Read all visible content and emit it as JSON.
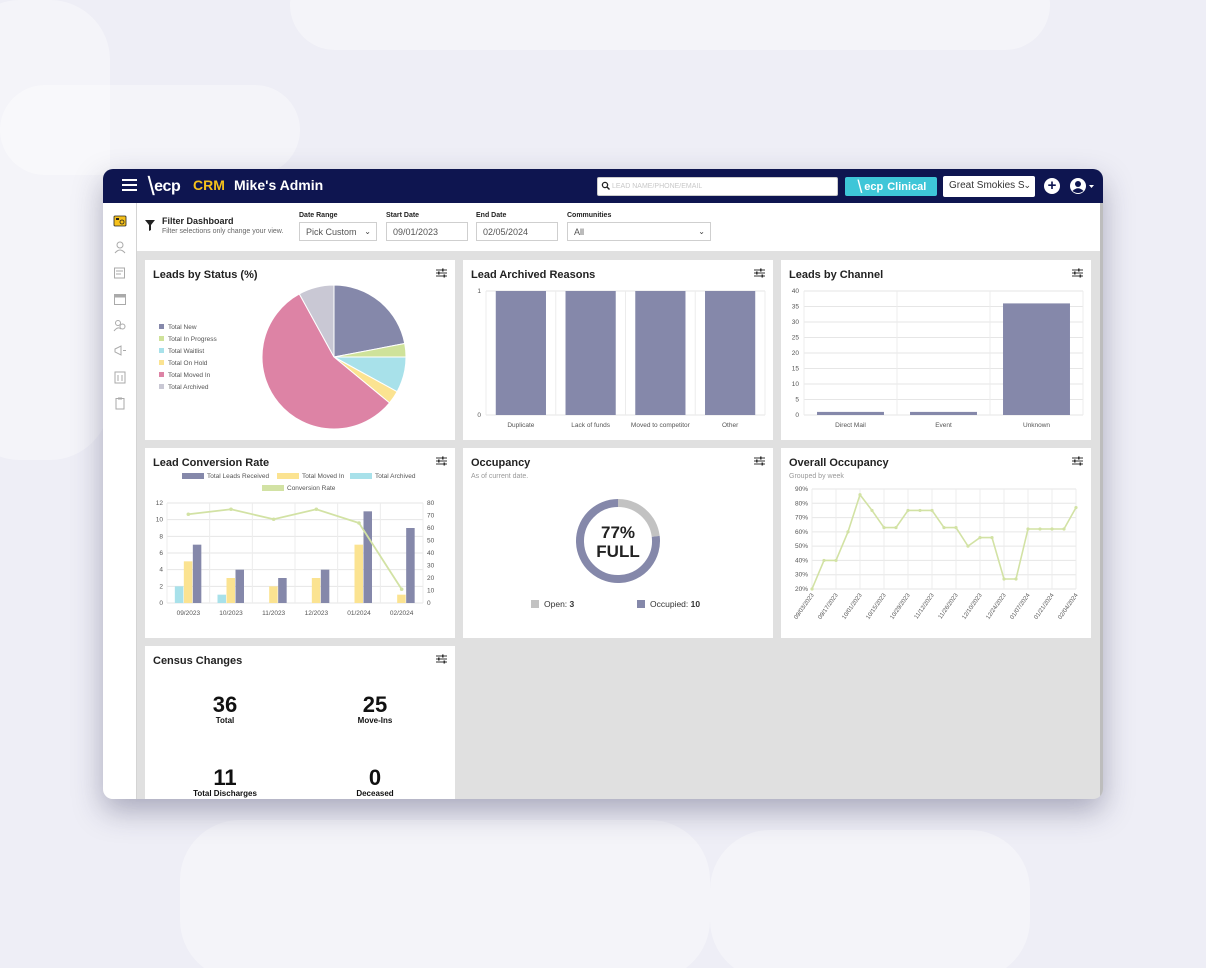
{
  "header": {
    "logo_text": "ecp",
    "product": "CRM",
    "title": "Mike's Admin",
    "search_placeholder": "LEAD NAME/PHONE/EMAIL",
    "clinical_label": "Clinical",
    "clinical_logo": "ecp",
    "community_selected": "Great Smokies S",
    "plus_label": "+"
  },
  "filter": {
    "title": "Filter Dashboard",
    "subtitle": "Filter selections only change your view.",
    "date_range_label": "Date Range",
    "date_range_value": "Pick Custom",
    "start_date_label": "Start Date",
    "start_date_value": "09/01/2023",
    "end_date_label": "End Date",
    "end_date_value": "02/05/2024",
    "communities_label": "Communities",
    "communities_value": "All"
  },
  "sidebar": {
    "icons": [
      "dashboard-icon",
      "person-icon",
      "notes-icon",
      "calendar-icon",
      "people-search-icon",
      "megaphone-icon",
      "building-icon",
      "clipboard-icon"
    ],
    "active_color": "#f6c11b"
  },
  "colors": {
    "navy": "#0e1550",
    "series_purple": "#8588aa",
    "green_line": "#d2e2a4",
    "yellow": "#fbe391",
    "cyan": "#a8e1ea",
    "pink": "#dd83a5",
    "lightgreen": "#c7dfa0",
    "gray": "#c9c8d4"
  },
  "cards": {
    "leads_status": {
      "title": "Leads by Status (%)"
    },
    "archived": {
      "title": "Lead Archived Reasons"
    },
    "channel": {
      "title": "Leads by Channel"
    },
    "conversion": {
      "title": "Lead Conversion Rate"
    },
    "occupancy": {
      "title": "Occupancy",
      "subtitle": "As of current date.",
      "percent_text": "77%",
      "full_text": "FULL",
      "open_label": "Open:",
      "open_value": "3",
      "occupied_label": "Occupied:",
      "occupied_value": "10"
    },
    "overall": {
      "title": "Overall Occupancy",
      "subtitle": "Grouped by week"
    },
    "census": {
      "title": "Census Changes",
      "total": "36",
      "total_label": "Total",
      "moveins": "25",
      "moveins_label": "Move-Ins",
      "discharges": "11",
      "discharges_label": "Total Discharges",
      "deceased": "0",
      "deceased_label": "Deceased"
    }
  },
  "chart_data": [
    {
      "id": "leads_status",
      "type": "pie",
      "title": "Leads by Status (%)",
      "legend_position": "left",
      "labels": [
        "Total New",
        "Total In Progress",
        "Total Waitlist",
        "Total On Hold",
        "Total Moved In",
        "Total Archived"
      ],
      "values": [
        22,
        3,
        8,
        3,
        56,
        8
      ],
      "colors": [
        "#8588aa",
        "#cfe29a",
        "#a8e1ea",
        "#fbe391",
        "#dd83a5",
        "#c9c8d4"
      ]
    },
    {
      "id": "archived",
      "type": "bar",
      "title": "Lead Archived Reasons",
      "categories": [
        "Duplicate",
        "Lack of funds",
        "Moved to competitor",
        "Other"
      ],
      "values": [
        1,
        1,
        1,
        1
      ],
      "ylim": [
        0,
        1
      ],
      "yticks": [
        0,
        1
      ],
      "grid": true
    },
    {
      "id": "channel",
      "type": "bar",
      "title": "Leads by Channel",
      "categories": [
        "Direct Mail",
        "Event",
        "Unknown"
      ],
      "values": [
        1,
        1,
        36
      ],
      "ylim": [
        0,
        40
      ],
      "yticks": [
        0,
        5,
        10,
        15,
        20,
        25,
        30,
        35,
        40
      ],
      "grid": true
    },
    {
      "id": "conversion",
      "type": "bar",
      "title": "Lead Conversion Rate",
      "legend_position": "top",
      "categories": [
        "09/2023",
        "10/2023",
        "11/2023",
        "12/2023",
        "01/2024",
        "02/2024"
      ],
      "series": [
        {
          "name": "Total Leads Received",
          "values": [
            7,
            4,
            3,
            4,
            11,
            9
          ],
          "color": "#8588aa"
        },
        {
          "name": "Total Moved In",
          "values": [
            5,
            3,
            2,
            3,
            7,
            1
          ],
          "color": "#fbe391"
        },
        {
          "name": "Total Archived",
          "values": [
            2,
            1,
            0,
            0,
            0,
            0
          ],
          "color": "#a8e1ea"
        },
        {
          "name": "Conversion Rate",
          "type": "line",
          "axis": "right",
          "values": [
            71,
            75,
            67,
            75,
            64,
            11
          ],
          "color": "#d2e2a4"
        }
      ],
      "ylim": [
        0,
        12
      ],
      "yticks": [
        0,
        2,
        4,
        6,
        8,
        10,
        12
      ],
      "y2lim": [
        0,
        80
      ],
      "y2ticks": [
        0,
        10,
        20,
        30,
        40,
        50,
        60,
        70,
        80
      ],
      "grid": true
    },
    {
      "id": "occupancy",
      "type": "pie",
      "title": "Occupancy",
      "labels": [
        "Open",
        "Occupied"
      ],
      "values": [
        3,
        10
      ],
      "colors": [
        "#c2c2c2",
        "#8588aa"
      ]
    },
    {
      "id": "overall",
      "type": "line",
      "title": "Overall Occupancy",
      "x": [
        "09/03/2023",
        "09/10/2023",
        "09/17/2023",
        "09/24/2023",
        "10/01/2023",
        "10/08/2023",
        "10/15/2023",
        "10/22/2023",
        "10/29/2023",
        "11/05/2023",
        "11/12/2023",
        "11/19/2023",
        "11/26/2023",
        "12/03/2023",
        "12/10/2023",
        "12/17/2023",
        "12/24/2023",
        "12/31/2023",
        "01/07/2024",
        "01/14/2024",
        "01/21/2024",
        "01/28/2024",
        "02/04/2024"
      ],
      "xtick_labels": [
        "09/03/2023",
        "09/17/2023",
        "10/01/2023",
        "10/15/2023",
        "10/29/2023",
        "11/12/2023",
        "11/26/2023",
        "12/10/2023",
        "12/24/2023",
        "01/07/2024",
        "01/21/2024",
        "02/04/2024"
      ],
      "values": [
        20,
        40,
        40,
        60,
        86,
        75,
        63,
        63,
        75,
        75,
        75,
        63,
        63,
        50,
        56,
        56,
        27,
        27,
        62,
        62,
        62,
        62,
        77
      ],
      "ylim": [
        20,
        90
      ],
      "yticks": [
        "20%",
        "25%",
        "30%",
        "35%",
        "40%",
        "45%",
        "50%",
        "55%",
        "60%",
        "65%",
        "70%",
        "75%",
        "80%",
        "85%",
        "90%"
      ],
      "color": "#d2e2a4",
      "grid": true
    }
  ]
}
